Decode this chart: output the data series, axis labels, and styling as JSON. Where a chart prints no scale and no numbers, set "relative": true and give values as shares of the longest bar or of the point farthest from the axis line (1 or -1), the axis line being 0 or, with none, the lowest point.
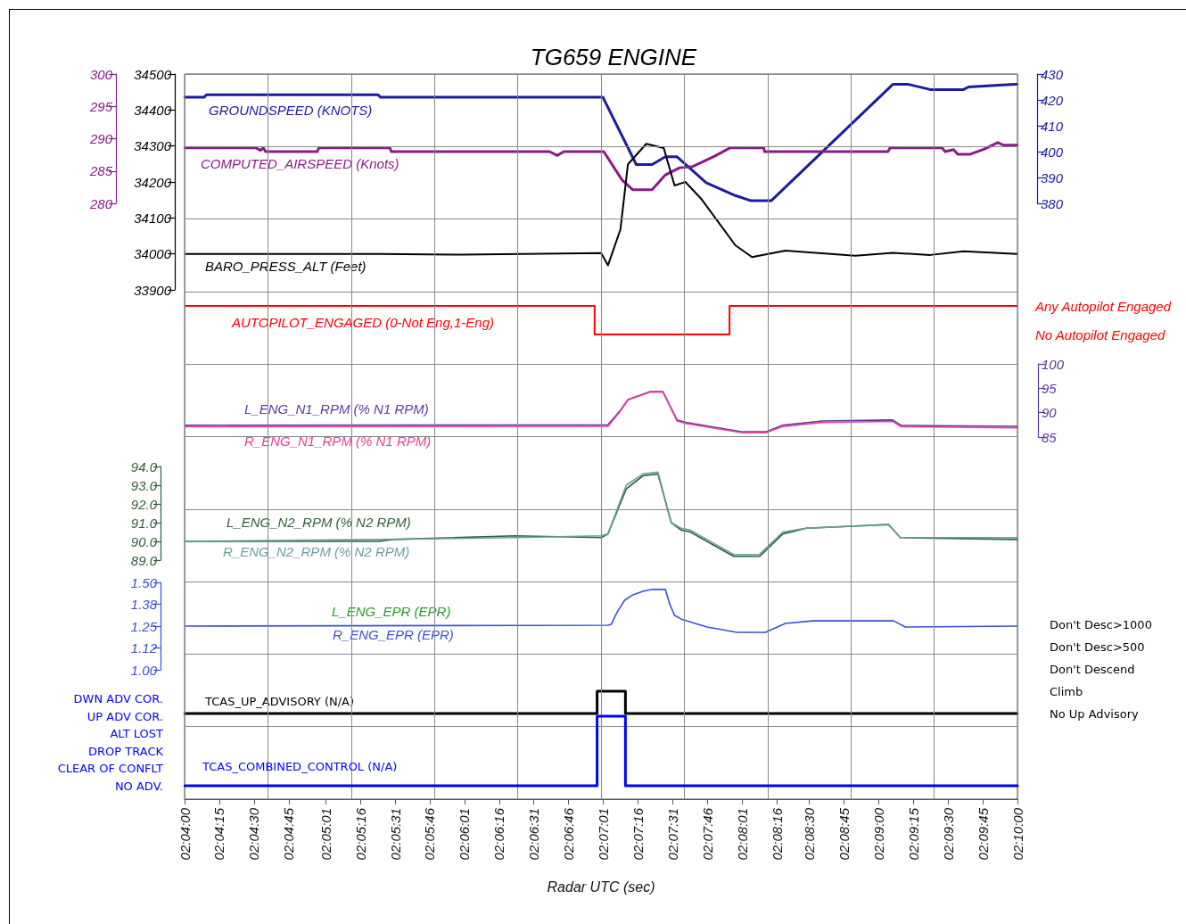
{
  "chart_data": [
    {
      "type": "line",
      "title": "TG659 ENGINE",
      "tick_labels": "y",
      "marker": "none",
      "xlim": [
        2.06667,
        2.16667
      ],
      "ylim": [
        33900,
        34500
      ],
      "yticks": [
        33900,
        34000,
        34100,
        34200,
        34300,
        34400,
        34500
      ],
      "y2lim": [
        280,
        300
      ],
      "y2ticks": [
        280,
        285,
        290,
        295,
        300
      ],
      "y3lim": [
        380,
        430
      ],
      "y3ticks": [
        380,
        390,
        400,
        410,
        420,
        430
      ],
      "series": [
        {
          "name": "GROUNDSPEED (KNOTS)",
          "color": "#1c1ca0",
          "axis": "y3",
          "x": [
            2.0667,
            2.069,
            2.0693,
            2.0899,
            2.0902,
            2.1169,
            2.1209,
            2.1228,
            2.1244,
            2.1258,
            2.1293,
            2.1328,
            2.1347,
            2.1371,
            2.1517,
            2.1536,
            2.1562,
            2.1602,
            2.1608,
            2.1663,
            2.16667
          ],
          "values": [
            421,
            421,
            422,
            422,
            421,
            421,
            395,
            395,
            398,
            398,
            388,
            383,
            381,
            381,
            426,
            426,
            424,
            424,
            425,
            426,
            426
          ]
        },
        {
          "name": "COMPUTED_AIRSPEED (Knots)",
          "color": "#8b1a89",
          "axis": "y2",
          "x": [
            2.0667,
            2.0752,
            2.0758,
            2.0761,
            2.0764,
            2.0826,
            2.0828,
            2.0913,
            2.0915,
            2.1105,
            2.1114,
            2.1122,
            2.117,
            2.1192,
            2.1205,
            2.1228,
            2.1244,
            2.1261,
            2.1277,
            2.1303,
            2.1322,
            2.1362,
            2.1363,
            2.1511,
            2.1514,
            2.1576,
            2.158,
            2.159,
            2.1595,
            2.161,
            2.1627,
            2.1643,
            2.165,
            2.16667
          ],
          "values": [
            288.6,
            288.6,
            288.2,
            288.6,
            288.0,
            288.0,
            288.6,
            288.6,
            288.0,
            288.0,
            287.4,
            288.0,
            288.0,
            283.6,
            282.1,
            282.1,
            284.4,
            285.5,
            285.7,
            287.3,
            288.6,
            288.6,
            288.0,
            288.0,
            288.6,
            288.6,
            288.0,
            288.3,
            287.6,
            287.6,
            288.4,
            289.4,
            289.0,
            289.0
          ]
        },
        {
          "name": "BARO_PRESS_ALT (Feet)",
          "color": "#000000",
          "x": [
            2.0667,
            2.09,
            2.1,
            2.112,
            2.1167,
            2.1175,
            2.119,
            2.1199,
            2.1221,
            2.1242,
            2.1255,
            2.1268,
            2.1287,
            2.1328,
            2.1348,
            2.1388,
            2.1472,
            2.1517,
            2.1562,
            2.1602,
            2.16667
          ],
          "values": [
            34000,
            34000,
            33998,
            34001,
            34002,
            33968,
            34068,
            34249,
            34306,
            34294,
            34190,
            34200,
            34153,
            34024,
            33991,
            34009,
            33995,
            34003,
            33997,
            34007,
            34000
          ]
        }
      ]
    },
    {
      "type": "step",
      "relative": true,
      "tick_labels": false,
      "marker": "none",
      "xlim": [
        2.06667,
        2.16667
      ],
      "annotations": [
        "Any Autopilot Engaged",
        "No Autopilot Engaged"
      ],
      "series": [
        {
          "name": "AUTOPILOT_ENGAGED (0-Not Eng,1-Eng)",
          "color": "#ff0000",
          "x": [
            2.0667,
            2.1159,
            2.1321,
            2.16667
          ],
          "values": [
            1,
            0,
            1,
            1
          ]
        }
      ]
    },
    {
      "type": "line",
      "tick_labels": "y",
      "marker": "none",
      "xlim": [
        2.06667,
        2.16667
      ],
      "ylim": [
        85,
        100
      ],
      "yticks": [
        85,
        90,
        95,
        100
      ],
      "series": [
        {
          "name": "L_ENG_N1_RPM (% N1 RPM)",
          "color": "#5b3aa0",
          "x": [
            2.0667,
            2.1175,
            2.119,
            2.1199,
            2.1225,
            2.1241,
            2.1258,
            2.1268,
            2.1335,
            2.1365,
            2.1384,
            2.1432,
            2.1517,
            2.1527,
            2.16667
          ],
          "values": [
            87.4,
            87.5,
            90.5,
            92.7,
            94.3,
            94.3,
            88.5,
            88.0,
            86.1,
            86.1,
            87.4,
            88.3,
            88.5,
            87.4,
            87.2
          ]
        },
        {
          "name": "R_ENG_N1_RPM (% N1 RPM)",
          "color": "#e8409a",
          "x": [
            2.0667,
            2.1175,
            2.119,
            2.1199,
            2.1225,
            2.1241,
            2.1258,
            2.1268,
            2.1335,
            2.1365,
            2.1384,
            2.1432,
            2.1517,
            2.1527,
            2.16667
          ],
          "values": [
            87.1,
            87.2,
            90.3,
            92.6,
            94.2,
            94.2,
            88.3,
            87.8,
            85.9,
            85.9,
            87.1,
            88.0,
            88.2,
            87.1,
            86.9
          ]
        }
      ]
    },
    {
      "type": "line",
      "tick_labels": "y",
      "marker": "none",
      "xlim": [
        2.06667,
        2.16667
      ],
      "ylim": [
        89,
        94
      ],
      "yticks": [
        {
          "value": 89,
          "label": "89.0"
        },
        {
          "value": 90,
          "label": "90.0"
        },
        {
          "value": 91,
          "label": "91.0"
        },
        {
          "value": 92,
          "label": "92.0"
        },
        {
          "value": 93,
          "label": "93.0"
        },
        {
          "value": 94,
          "label": "94.0"
        }
      ],
      "series": [
        {
          "name": "L_ENG_N2_RPM (% N2 RPM)",
          "color": "#2f5f3a",
          "x": [
            2.0667,
            2.09,
            2.0917,
            2.1063,
            2.1167,
            2.1175,
            2.1197,
            2.1217,
            2.1235,
            2.1251,
            2.1263,
            2.1274,
            2.1302,
            2.1326,
            2.1357,
            2.1385,
            2.1413,
            2.1512,
            2.1526,
            2.16667
          ],
          "values": [
            90.0,
            90.0,
            90.1,
            90.3,
            90.2,
            90.4,
            92.8,
            93.5,
            93.6,
            91.0,
            90.6,
            90.5,
            89.8,
            89.2,
            89.2,
            90.4,
            90.7,
            90.9,
            90.2,
            90.1
          ]
        },
        {
          "name": "R_ENG_N2_RPM (% N2 RPM)",
          "color": "#6a9d9d",
          "x": [
            2.0667,
            2.09,
            2.1063,
            2.1167,
            2.1175,
            2.1197,
            2.1217,
            2.1235,
            2.1251,
            2.1263,
            2.1274,
            2.1302,
            2.1326,
            2.1357,
            2.1385,
            2.1413,
            2.1512,
            2.1526,
            2.16667
          ],
          "values": [
            90.0,
            90.1,
            90.2,
            90.3,
            90.4,
            93.0,
            93.6,
            93.7,
            91.0,
            90.7,
            90.6,
            89.9,
            89.3,
            89.3,
            90.5,
            90.7,
            90.9,
            90.2,
            90.2
          ]
        }
      ]
    },
    {
      "type": "line",
      "tick_labels": "y",
      "marker": "none",
      "xlim": [
        2.06667,
        2.16667
      ],
      "ylim": [
        1,
        1.5
      ],
      "yticks": [
        {
          "value": 1,
          "label": "1.00"
        },
        {
          "value": 1.125,
          "label": "1.12"
        },
        {
          "value": 1.25,
          "label": "1.25"
        },
        {
          "value": 1.375,
          "label": "1.38"
        },
        {
          "value": 1.5,
          "label": "1.50"
        }
      ],
      "annotations": [
        "L_ENG_EPR (EPR)"
      ],
      "series": [
        {
          "name": "R_ENG_EPR (EPR)",
          "color": "#3a50d8",
          "x": [
            2.0667,
            2.1175,
            2.1179,
            2.1186,
            2.1195,
            2.1205,
            2.1217,
            2.1228,
            2.1244,
            2.1249,
            2.1255,
            2.1263,
            2.1294,
            2.133,
            2.1364,
            2.1388,
            2.1421,
            2.1518,
            2.1532,
            2.16667
          ],
          "values": [
            1.25,
            1.255,
            1.26,
            1.33,
            1.398,
            1.429,
            1.449,
            1.46,
            1.46,
            1.378,
            1.311,
            1.29,
            1.245,
            1.214,
            1.214,
            1.265,
            1.28,
            1.28,
            1.245,
            1.25
          ]
        }
      ]
    },
    {
      "type": "step",
      "relative": true,
      "tick_labels": false,
      "marker": "none",
      "xlim": [
        2.06667,
        2.16667
      ],
      "annotations": [
        "Don't Desc>1000",
        "Don't Desc>500",
        "Don't Descend",
        "Climb",
        "No Up Advisory"
      ],
      "series": [
        {
          "name": "TCAS_UP_ADVISORY (N/A)",
          "color": "#000000",
          "x": [
            2.0667,
            2.1162,
            2.1196,
            2.16667
          ],
          "values": [
            0,
            1,
            0,
            0
          ]
        }
      ]
    },
    {
      "type": "step",
      "relative": true,
      "tick_labels": "x",
      "xlabel": "Radar UTC (sec)",
      "grid": true,
      "marker": "none",
      "xlim": [
        2.06667,
        2.16667
      ],
      "xticks": [
        {
          "value": 2.06667,
          "label": "02:04:00"
        },
        {
          "value": 2.07083,
          "label": "02:04:15"
        },
        {
          "value": 2.075,
          "label": "02:04:30"
        },
        {
          "value": 2.07917,
          "label": "02:04:45"
        },
        {
          "value": 2.08361,
          "label": "02:05:01"
        },
        {
          "value": 2.08778,
          "label": "02:05:16"
        },
        {
          "value": 2.09194,
          "label": "02:05:31"
        },
        {
          "value": 2.09611,
          "label": "02:05:46"
        },
        {
          "value": 2.10028,
          "label": "02:06:01"
        },
        {
          "value": 2.10444,
          "label": "02:06:16"
        },
        {
          "value": 2.10861,
          "label": "02:06:31"
        },
        {
          "value": 2.11278,
          "label": "02:06:46"
        },
        {
          "value": 2.11694,
          "label": "02:07:01"
        },
        {
          "value": 2.12111,
          "label": "02:07:16"
        },
        {
          "value": 2.12528,
          "label": "02:07:31"
        },
        {
          "value": 2.12944,
          "label": "02:07:46"
        },
        {
          "value": 2.13361,
          "label": "02:08:01"
        },
        {
          "value": 2.13778,
          "label": "02:08:16"
        },
        {
          "value": 2.14167,
          "label": "02:08:30"
        },
        {
          "value": 2.14583,
          "label": "02:08:45"
        },
        {
          "value": 2.15,
          "label": "02:09:00"
        },
        {
          "value": 2.15417,
          "label": "02:09:15"
        },
        {
          "value": 2.15833,
          "label": "02:09:30"
        },
        {
          "value": 2.1625,
          "label": "02:09:45"
        },
        {
          "value": 2.16667,
          "label": "02:10:00"
        }
      ],
      "annotations": [
        "DWN ADV COR.",
        "UP ADV COR.",
        "ALT LOST",
        "DROP TRACK",
        "CLEAR OF CONFLT",
        "NO ADV."
      ],
      "series": [
        {
          "name": "TCAS_COMBINED_CONTROL (N/A)",
          "color": "#0000ff",
          "x": [
            2.0667,
            2.1162,
            2.1196,
            2.16667
          ],
          "values": [
            0,
            1,
            0,
            0
          ]
        }
      ]
    }
  ]
}
